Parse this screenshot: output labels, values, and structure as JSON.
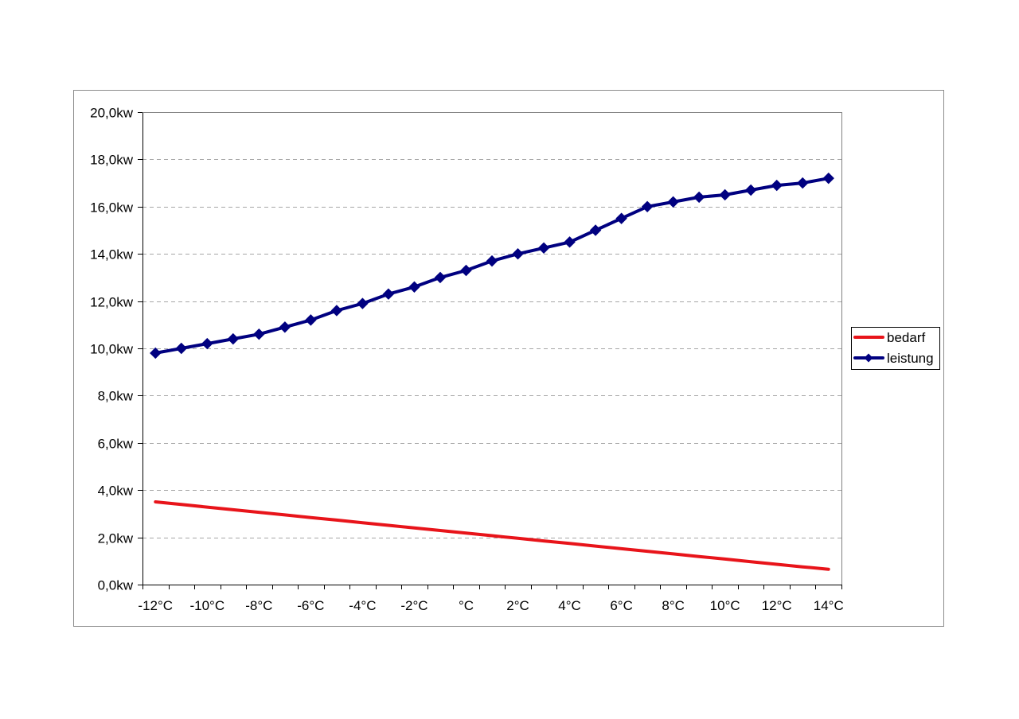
{
  "chart_data": {
    "type": "line",
    "categories": [
      "-12°C",
      "-11°C",
      "-10°C",
      "-9°C",
      "-8°C",
      "-7°C",
      "-6°C",
      "-5°C",
      "-4°C",
      "-3°C",
      "-2°C",
      "-1°C",
      "°C",
      "1°C",
      "2°C",
      "3°C",
      "4°C",
      "5°C",
      "6°C",
      "7°C",
      "8°C",
      "9°C",
      "10°C",
      "11°C",
      "12°C",
      "13°C",
      "14°C"
    ],
    "x_tick_labels": [
      "-12°C",
      "-10°C",
      "-8°C",
      "-6°C",
      "-4°C",
      "-2°C",
      "°C",
      "2°C",
      "4°C",
      "6°C",
      "8°C",
      "10°C",
      "12°C",
      "14°C"
    ],
    "y_tick_labels": [
      "0,0kw",
      "2,0kw",
      "4,0kw",
      "6,0kw",
      "8,0kw",
      "10,0kw",
      "12,0kw",
      "14,0kw",
      "16,0kw",
      "18,0kw",
      "20,0kw"
    ],
    "ylim": [
      0,
      20
    ],
    "ystep": 2,
    "grid": "horizontal dashed",
    "legend_position": "right",
    "title": "",
    "xlabel": "",
    "ylabel": "",
    "series": [
      {
        "name": "bedarf",
        "color": "#e8141a",
        "marker": "none",
        "values": [
          3.5,
          3.39,
          3.28,
          3.17,
          3.06,
          2.95,
          2.84,
          2.73,
          2.62,
          2.51,
          2.4,
          2.29,
          2.18,
          2.07,
          1.96,
          1.85,
          1.74,
          1.63,
          1.52,
          1.41,
          1.3,
          1.19,
          1.08,
          0.97,
          0.86,
          0.75,
          0.65
        ]
      },
      {
        "name": "leistung",
        "color": "#000080",
        "marker": "diamond",
        "values": [
          9.8,
          10.0,
          10.2,
          10.4,
          10.6,
          10.9,
          11.2,
          11.6,
          11.9,
          12.3,
          12.6,
          13.0,
          13.3,
          13.7,
          14.0,
          14.25,
          14.5,
          15.0,
          15.5,
          16.0,
          16.2,
          16.4,
          16.5,
          16.7,
          16.9,
          17.0,
          17.2
        ]
      }
    ]
  }
}
